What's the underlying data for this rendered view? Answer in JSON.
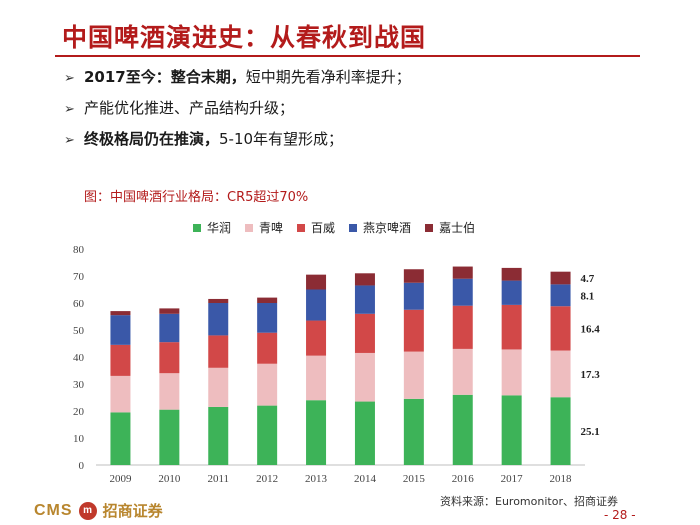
{
  "slide": {
    "title": "中国啤酒演进史：从春秋到战国",
    "bullets": [
      {
        "bold": "2017至今：整合末期，",
        "rest": "短中期先看净利率提升；"
      },
      {
        "bold": "",
        "rest": "产能优化推进、产品结构升级；"
      },
      {
        "bold": "终极格局仍在推演，",
        "rest": "5-10年有望形成；"
      }
    ],
    "bullet_glyph": "➢",
    "chart_caption": "图：中国啤酒行业格局：CR5超过70%",
    "source": "资料来源：Euromonitor、招商证券",
    "page_number": "- 28 -",
    "logo": {
      "cms": "CMS",
      "emblem": "m",
      "name": "招商证券"
    }
  },
  "colors": {
    "title_red": "#b31b1b",
    "series": [
      "#3db358",
      "#eebdbf",
      "#d24848",
      "#3a58a8",
      "#8b2c34"
    ]
  },
  "chart_data": {
    "type": "bar",
    "stacked": true,
    "categories": [
      "2009",
      "2010",
      "2011",
      "2012",
      "2013",
      "2014",
      "2015",
      "2016",
      "2017",
      "2018"
    ],
    "series": [
      {
        "name": "华润",
        "values": [
          19.5,
          20.5,
          21.5,
          22.0,
          24.0,
          23.5,
          24.5,
          26.0,
          25.8,
          25.1
        ]
      },
      {
        "name": "青啤",
        "values": [
          13.5,
          13.5,
          14.5,
          15.5,
          16.5,
          18.0,
          17.5,
          17.0,
          17.0,
          17.3
        ]
      },
      {
        "name": "百威",
        "values": [
          11.5,
          11.5,
          12.0,
          11.5,
          13.0,
          14.5,
          15.5,
          16.0,
          16.5,
          16.4
        ]
      },
      {
        "name": "燕京啤酒",
        "values": [
          11.0,
          10.5,
          12.0,
          11.0,
          11.5,
          10.5,
          10.0,
          10.0,
          9.0,
          8.1
        ]
      },
      {
        "name": "嘉士伯",
        "values": [
          1.5,
          2.0,
          1.5,
          2.0,
          5.5,
          4.5,
          5.0,
          4.5,
          4.7,
          4.7
        ]
      }
    ],
    "data_labels_last_bar": [
      "25.1",
      "17.3",
      "16.4",
      "8.1",
      "4.7"
    ],
    "ylim": [
      0,
      80
    ],
    "yticks": [
      "0",
      "10",
      "20",
      "30",
      "40",
      "50",
      "60",
      "70",
      "80"
    ],
    "grid": false,
    "legend_position": "top"
  }
}
